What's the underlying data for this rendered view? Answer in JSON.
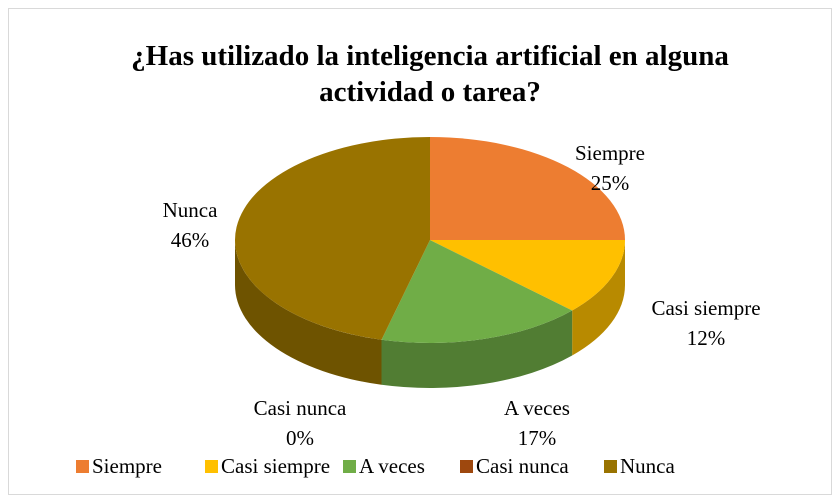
{
  "chart_data": {
    "type": "pie",
    "title": "¿Has utilizado la inteligencia artificial en alguna actividad o tarea?",
    "categories": [
      "Siempre",
      "Casi siempre",
      "A veces",
      "Casi nunca",
      "Nunca"
    ],
    "values": [
      25,
      12,
      17,
      0,
      46
    ],
    "value_labels": [
      "25%",
      "12%",
      "17%",
      "0%",
      "46%"
    ],
    "colors": [
      "#ED7D31",
      "#FFC000",
      "#70AD47",
      "#9E480E",
      "#997300"
    ],
    "legend": "bottom"
  }
}
